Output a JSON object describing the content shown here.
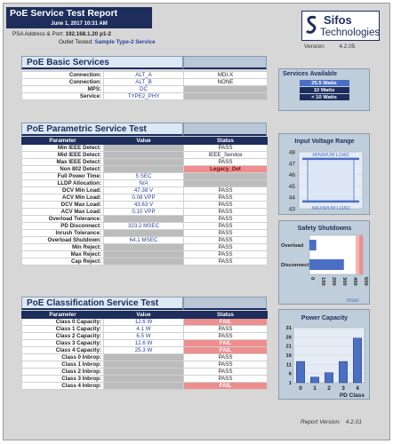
{
  "header": {
    "title": "PoE Service Test Report",
    "date": "June 1, 2017 10:31 AM",
    "address_label": "PSA Address & Port:",
    "address_value": "192.168.1.20 p1-2",
    "outlet_label": "Outlet Tested:",
    "outlet_value": "Sample Type-2 Service"
  },
  "logo": {
    "line1": "Sifos",
    "line2": "Technologies",
    "mark": "sifos-logo-icon"
  },
  "version": {
    "label": "Version:",
    "value": "4.2.05"
  },
  "basic": {
    "title": "PoE Basic Services",
    "rows": [
      {
        "label": "Connection:",
        "value": "ALT_A",
        "status": "MDI-X"
      },
      {
        "label": "Connection:",
        "value": "ALT_B",
        "status": "NONE"
      },
      {
        "label": "MPS:",
        "value": "DC",
        "status": ""
      },
      {
        "label": "Service:",
        "value": "TYPE2_PHY",
        "status": ""
      }
    ]
  },
  "services_available": {
    "title": "Services Available",
    "items": [
      "25.5 Watts",
      "10 Watts",
      "< 10 Watts"
    ],
    "highlight_index": 0
  },
  "parametric": {
    "title": "PoE Parametric Service Test",
    "headers": [
      "Parameter",
      "Value",
      "Status"
    ],
    "rows": [
      {
        "label": "Min IEEE Detect:",
        "value": "",
        "status": "PASS",
        "tone": "normal"
      },
      {
        "label": "Mid IEEE Detect:",
        "value": "",
        "status": "IEEE_Service",
        "tone": "normal"
      },
      {
        "label": "Max IEEE Detect:",
        "value": "",
        "status": "PASS",
        "tone": "normal"
      },
      {
        "label": "Non 802 Detect:",
        "value": "",
        "status": "Legacy_Det",
        "tone": "pink"
      },
      {
        "label": "Full Power Time:",
        "value": "5 SEC",
        "status": "",
        "tone": "gray"
      },
      {
        "label": "LLDP Allocation:",
        "value": "N/A",
        "status": "",
        "tone": "gray"
      },
      {
        "label": "DCV Min Load:",
        "value": "47.38 V",
        "status": "PASS",
        "tone": "normal"
      },
      {
        "label": "ACV Min Load:",
        "value": "0.08 VPP",
        "status": "PASS",
        "tone": "normal"
      },
      {
        "label": "DCV Max Load:",
        "value": "43.63 V",
        "status": "PASS",
        "tone": "normal"
      },
      {
        "label": "ACV Max Load:",
        "value": "0.10 VPP",
        "status": "PASS",
        "tone": "normal"
      },
      {
        "label": "Overload Tolerance:",
        "value": "",
        "status": "PASS",
        "tone": "normal"
      },
      {
        "label": "PD Disconnect:",
        "value": "323.2 MSEC",
        "status": "PASS",
        "tone": "normal"
      },
      {
        "label": "Inrush Tolerance:",
        "value": "",
        "status": "PASS",
        "tone": "normal"
      },
      {
        "label": "Overload Shutdown:",
        "value": "64.1 MSEC",
        "status": "PASS",
        "tone": "normal"
      },
      {
        "label": "Min Reject:",
        "value": "",
        "status": "PASS",
        "tone": "normal"
      },
      {
        "label": "Max Reject:",
        "value": "",
        "status": "PASS",
        "tone": "normal"
      },
      {
        "label": "Cap Reject:",
        "value": "",
        "status": "PASS",
        "tone": "normal"
      }
    ]
  },
  "classification": {
    "title": "PoE Classification Service Test",
    "headers": [
      "Parameter",
      "Value",
      "Status"
    ],
    "rows": [
      {
        "label": "Class 0 Capacity:",
        "value": "12.6 W",
        "status": "FAIL",
        "tone": "pink"
      },
      {
        "label": "Class 1 Capacity:",
        "value": "4.1 W",
        "status": "PASS",
        "tone": "normal"
      },
      {
        "label": "Class 2 Capacity:",
        "value": "6.5 W",
        "status": "PASS",
        "tone": "normal"
      },
      {
        "label": "Class 3 Capacity:",
        "value": "12.6 W",
        "status": "FAIL",
        "tone": "pink"
      },
      {
        "label": "Class 4 Capacity:",
        "value": "25.3 W",
        "status": "FAIL",
        "tone": "pink"
      },
      {
        "label": "Class 0 Inbrop:",
        "value": "",
        "status": "PASS",
        "tone": "normal"
      },
      {
        "label": "Class 1 Inbrop:",
        "value": "",
        "status": "PASS",
        "tone": "normal"
      },
      {
        "label": "Class 2 Inbrop:",
        "value": "",
        "status": "PASS",
        "tone": "normal"
      },
      {
        "label": "Class 3 Inbrop:",
        "value": "",
        "status": "PASS",
        "tone": "normal"
      },
      {
        "label": "Class 4 Inbrop:",
        "value": "",
        "status": "FAIL",
        "tone": "pink"
      }
    ]
  },
  "chart_data": [
    {
      "type": "bar",
      "title": "Input Voltage Range",
      "top_label": "MINIMUM LOAD",
      "bottom_label": "MAXIMUM LOAD",
      "y_ticks": [
        48,
        47,
        46,
        45,
        44,
        43
      ],
      "ylim": [
        43,
        48
      ],
      "range": [
        43.63,
        47.38
      ]
    },
    {
      "type": "bar",
      "title": "Safety Shutdowns",
      "categories": [
        "Overload",
        "Disconnect"
      ],
      "values": [
        64.1,
        323.2
      ],
      "x_ticks": [
        "0",
        "100",
        "200",
        "300",
        "400",
        "500"
      ],
      "xlim": [
        0,
        500
      ],
      "xlabel": "msec"
    },
    {
      "type": "bar",
      "title": "Power Capacity",
      "categories": [
        "0",
        "1",
        "2",
        "3",
        "4"
      ],
      "values": [
        12.6,
        4.1,
        6.5,
        12.6,
        25.3
      ],
      "y_ticks": [
        "31",
        "26",
        "21",
        "16",
        "11",
        "6",
        "1"
      ],
      "ylim": [
        1,
        31
      ],
      "xlabel": "PD Class"
    }
  ],
  "report_version": {
    "label": "Report Version:",
    "value": "4.2.01"
  },
  "colors": {
    "navy": "#1d2e5c",
    "fail": "#ee8e8e",
    "panel": "#d7d7d7",
    "chart_bar": "#4a6fc4"
  }
}
